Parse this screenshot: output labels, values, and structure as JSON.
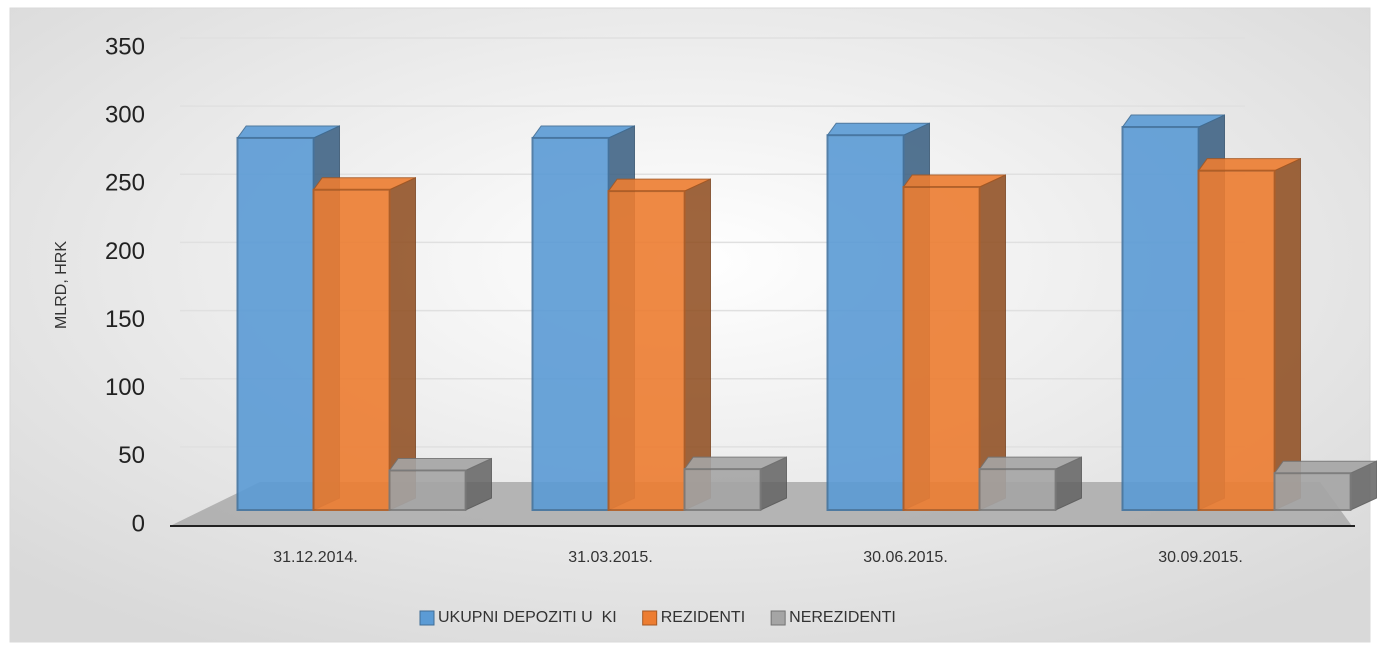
{
  "chart_data": {
    "type": "bar3d",
    "y_label": "MLRD, HRK",
    "categories": [
      "31.12.2014.",
      "31.03.2015.",
      "30.06.2015.",
      "30.09.2015."
    ],
    "series": [
      {
        "name": "UKUPNI DEPOZITI U  KI",
        "color": "#5b9bd5",
        "values": [
          284,
          284,
          286,
          292
        ]
      },
      {
        "name": "REZIDENTI",
        "color": "#ed7d31",
        "values": [
          246,
          245,
          248,
          260
        ]
      },
      {
        "name": "NEREZIDENTI",
        "color": "#a5a5a5",
        "values": [
          40,
          41,
          41,
          38
        ]
      }
    ],
    "ylim": [
      0,
      350
    ],
    "yticks": [
      0,
      50,
      100,
      150,
      200,
      250,
      300,
      350
    ],
    "grid": true,
    "legend": "bottom"
  }
}
